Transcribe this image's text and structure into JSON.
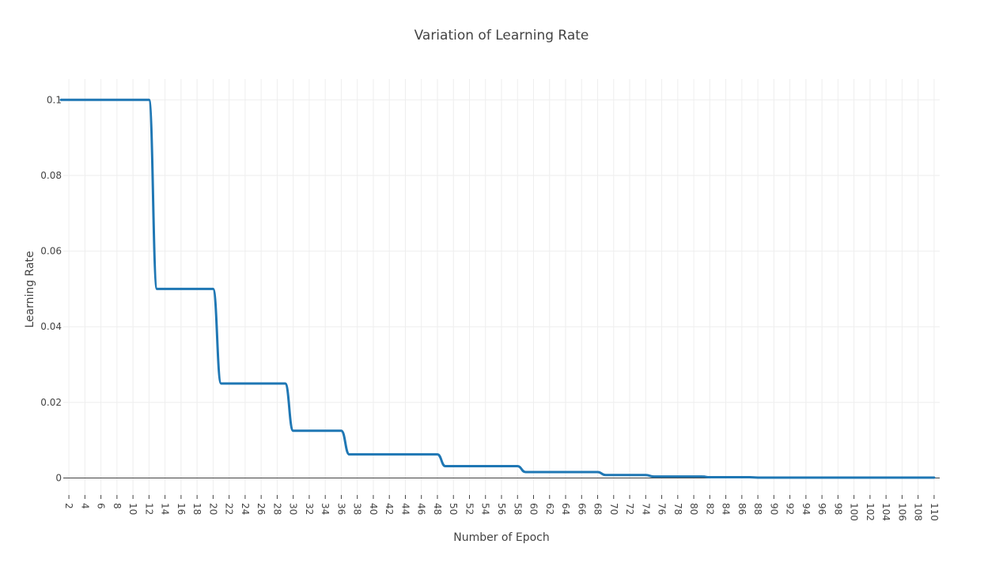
{
  "chart_data": {
    "type": "line",
    "title": "Variation of Learning Rate",
    "xlabel": "Number of Epoch",
    "ylabel": "Learning Rate",
    "xlim": [
      1.3,
      110.7
    ],
    "ylim": [
      -0.0045,
      0.1055
    ],
    "xticks": [
      2,
      4,
      6,
      8,
      10,
      12,
      14,
      16,
      18,
      20,
      22,
      24,
      26,
      28,
      30,
      32,
      34,
      36,
      38,
      40,
      42,
      44,
      46,
      48,
      50,
      52,
      54,
      56,
      58,
      60,
      62,
      64,
      66,
      68,
      70,
      72,
      74,
      76,
      78,
      80,
      82,
      84,
      86,
      88,
      90,
      92,
      94,
      96,
      98,
      100,
      102,
      104,
      106,
      108,
      110
    ],
    "xtick_labels": [
      "2",
      "4",
      "6",
      "8",
      "10",
      "12",
      "14",
      "16",
      "18",
      "20",
      "22",
      "24",
      "26",
      "28",
      "30",
      "32",
      "34",
      "36",
      "38",
      "40",
      "42",
      "44",
      "46",
      "48",
      "50",
      "52",
      "54",
      "56",
      "58",
      "60",
      "62",
      "64",
      "66",
      "68",
      "70",
      "72",
      "74",
      "76",
      "78",
      "80",
      "82",
      "84",
      "86",
      "88",
      "90",
      "92",
      "94",
      "96",
      "98",
      "100",
      "102",
      "104",
      "106",
      "108",
      "110"
    ],
    "yticks": [
      0,
      0.02,
      0.04,
      0.06,
      0.08,
      0.1
    ],
    "ytick_labels": [
      "0",
      "0.02",
      "0.04",
      "0.06",
      "0.08",
      "0.1"
    ],
    "grid": true,
    "color": "#1f77b4",
    "series": [
      {
        "x": [
          1,
          2,
          3,
          4,
          5,
          6,
          7,
          8,
          9,
          10,
          11,
          12,
          13,
          14,
          15,
          16,
          17,
          18,
          19,
          20,
          21,
          22,
          23,
          24,
          25,
          26,
          27,
          28,
          29,
          30,
          31,
          32,
          33,
          34,
          35,
          36,
          37,
          38,
          39,
          40,
          41,
          42,
          43,
          44,
          45,
          46,
          47,
          48,
          49,
          50,
          51,
          52,
          53,
          54,
          55,
          56,
          57,
          58,
          59,
          60,
          61,
          62,
          63,
          64,
          65,
          66,
          67,
          68,
          69,
          70,
          71,
          72,
          73,
          74,
          75,
          76,
          77,
          78,
          79,
          80,
          81,
          82,
          83,
          84,
          85,
          86,
          87,
          88,
          89,
          90,
          91,
          92,
          93,
          94,
          95,
          96,
          97,
          98,
          99,
          100,
          101,
          102,
          103,
          104,
          105,
          106,
          107,
          108,
          109,
          110
        ],
        "y": [
          0.1,
          0.1,
          0.1,
          0.1,
          0.1,
          0.1,
          0.1,
          0.1,
          0.1,
          0.1,
          0.1,
          0.1,
          0.05,
          0.05,
          0.05,
          0.05,
          0.05,
          0.05,
          0.05,
          0.05,
          0.025,
          0.025,
          0.025,
          0.025,
          0.025,
          0.025,
          0.025,
          0.025,
          0.025,
          0.0125,
          0.0125,
          0.0125,
          0.0125,
          0.0125,
          0.0125,
          0.0125,
          0.00625,
          0.00625,
          0.00625,
          0.00625,
          0.00625,
          0.00625,
          0.00625,
          0.00625,
          0.00625,
          0.00625,
          0.00625,
          0.00625,
          0.003125,
          0.003125,
          0.003125,
          0.003125,
          0.003125,
          0.003125,
          0.003125,
          0.003125,
          0.003125,
          0.003125,
          0.0015625,
          0.0015625,
          0.0015625,
          0.0015625,
          0.0015625,
          0.0015625,
          0.0015625,
          0.0015625,
          0.0015625,
          0.0015625,
          0.00078125,
          0.00078125,
          0.00078125,
          0.00078125,
          0.00078125,
          0.00078125,
          0.000390625,
          0.000390625,
          0.000390625,
          0.000390625,
          0.000390625,
          0.000390625,
          0.000390625,
          0.0001953125,
          0.0001953125,
          0.0001953125,
          0.0001953125,
          0.0001953125,
          0.0001953125,
          9.765625e-05,
          9.765625e-05,
          9.765625e-05,
          9.765625e-05,
          9.765625e-05,
          9.765625e-05,
          9.765625e-05,
          9.765625e-05,
          9.765625e-05,
          9.765625e-05,
          9.765625e-05,
          9.765625e-05,
          9.765625e-05,
          9.765625e-05,
          9.765625e-05,
          9.765625e-05,
          9.765625e-05,
          9.765625e-05,
          9.765625e-05,
          9.765625e-05,
          9.765625e-05,
          9.765625e-05,
          9.765625e-05
        ]
      }
    ]
  }
}
